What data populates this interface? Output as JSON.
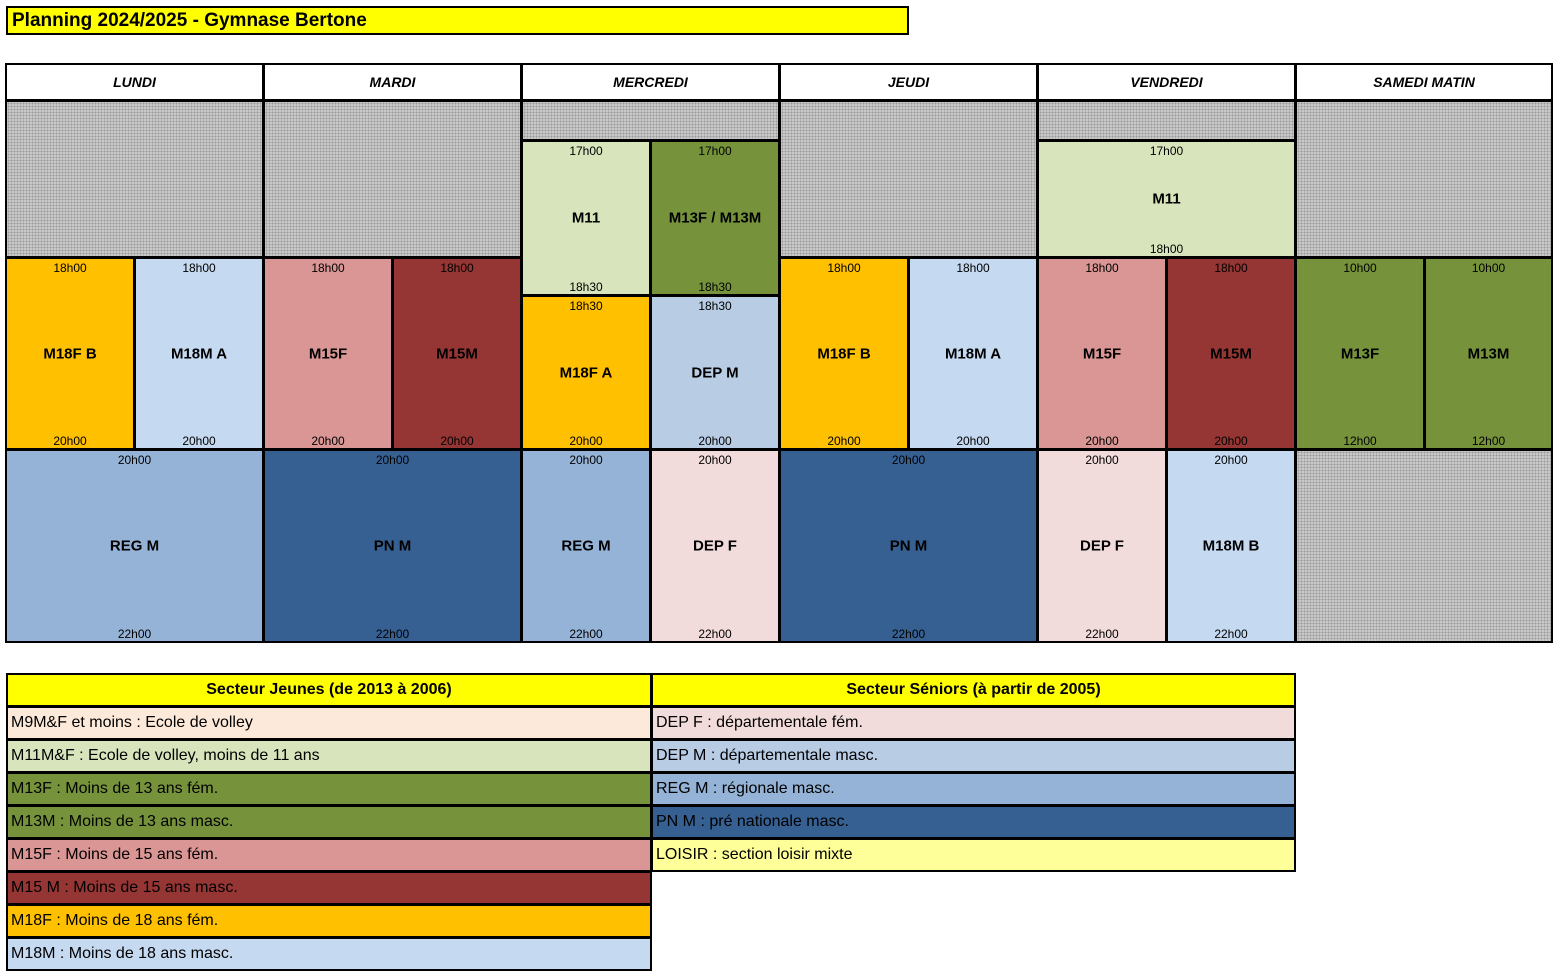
{
  "title": "Planning 2024/2025 - Gymnase Bertone",
  "days": [
    "LUNDI",
    "MARDI",
    "MERCREDI",
    "JEUDI",
    "VENDREDI",
    "SAMEDI MATIN"
  ],
  "colors": {
    "M11": "#d8e4bc",
    "M13": "#76933c",
    "M15F": "#da9694",
    "M15M": "#963634",
    "M18F": "#ffc000",
    "M18M": "#c5d9f1",
    "DEP_F": "#f2dcdb",
    "DEP_M": "#b8cce4",
    "REG_M": "#95b3d7",
    "PN_M": "#366092",
    "M9": "#fde9d9",
    "LOISIR": "#ffff99"
  },
  "schedule": {
    "lundi": {
      "m18f_b": {
        "start": "18h00",
        "name": "M18F B",
        "end": "20h00"
      },
      "m18m_a": {
        "start": "18h00",
        "name": "M18M A",
        "end": "20h00"
      },
      "reg_m": {
        "start": "20h00",
        "name": "REG M",
        "end": "22h00"
      }
    },
    "mardi": {
      "m15f": {
        "start": "18h00",
        "name": "M15F",
        "end": "20h00"
      },
      "m15m": {
        "start": "18h00",
        "name": "M15M",
        "end": "20h00"
      },
      "pn_m": {
        "start": "20h00",
        "name": "PN M",
        "end": "22h00"
      }
    },
    "mercredi": {
      "m11": {
        "start": "17h00",
        "name": "M11",
        "end": "18h30"
      },
      "m13": {
        "start": "17h00",
        "name": "M13F / M13M",
        "end": "18h30"
      },
      "m18f_a": {
        "start": "18h30",
        "name": "M18F A",
        "end": "20h00"
      },
      "dep_m": {
        "start": "18h30",
        "name": "DEP M",
        "end": "20h00"
      },
      "reg_m": {
        "start": "20h00",
        "name": "REG M",
        "end": "22h00"
      },
      "dep_f": {
        "start": "20h00",
        "name": "DEP F",
        "end": "22h00"
      }
    },
    "jeudi": {
      "m18f_b": {
        "start": "18h00",
        "name": "M18F B",
        "end": "20h00"
      },
      "m18m_a": {
        "start": "18h00",
        "name": "M18M A",
        "end": "20h00"
      },
      "pn_m": {
        "start": "20h00",
        "name": "PN M",
        "end": "22h00"
      }
    },
    "vendredi": {
      "m11": {
        "start": "17h00",
        "name": "M11",
        "end": "18h00"
      },
      "m15f": {
        "start": "18h00",
        "name": "M15F",
        "end": "20h00"
      },
      "m15m": {
        "start": "18h00",
        "name": "M15M",
        "end": "20h00"
      },
      "dep_f": {
        "start": "20h00",
        "name": "DEP F",
        "end": "22h00"
      },
      "m18m_b": {
        "start": "20h00",
        "name": "M18M B",
        "end": "22h00"
      }
    },
    "samedi": {
      "m13f": {
        "start": "10h00",
        "name": "M13F",
        "end": "12h00"
      },
      "m13m": {
        "start": "10h00",
        "name": "M13M",
        "end": "12h00"
      }
    }
  },
  "legend": {
    "jeunes_title": "Secteur Jeunes (de 2013 à 2006)",
    "seniors_title": "Secteur Séniors (à partir de 2005)",
    "jeunes": [
      {
        "text": "M9M&F et moins : Ecole de volley",
        "color": "#fde9d9"
      },
      {
        "text": "M11M&F : Ecole de volley, moins de 11 ans",
        "color": "#d8e4bc"
      },
      {
        "text": "M13F : Moins de 13 ans fém.",
        "color": "#76933c"
      },
      {
        "text": "M13M : Moins de 13 ans masc.",
        "color": "#76933c"
      },
      {
        "text": "M15F : Moins de 15 ans fém.",
        "color": "#da9694"
      },
      {
        "text": "M15 M : Moins de 15 ans masc.",
        "color": "#963634"
      },
      {
        "text": "M18F : Moins de 18 ans fém.",
        "color": "#ffc000"
      },
      {
        "text": "M18M : Moins de 18 ans masc.",
        "color": "#c5d9f1"
      }
    ],
    "seniors": [
      {
        "text": "DEP F : départementale fém.",
        "color": "#f2dcdb"
      },
      {
        "text": "DEP M : départementale masc.",
        "color": "#b8cce4"
      },
      {
        "text": "REG M : régionale masc.",
        "color": "#95b3d7"
      },
      {
        "text": "PN M : pré nationale masc.",
        "color": "#366092"
      },
      {
        "text": "LOISIR : section loisir mixte",
        "color": "#ffff99"
      }
    ]
  }
}
